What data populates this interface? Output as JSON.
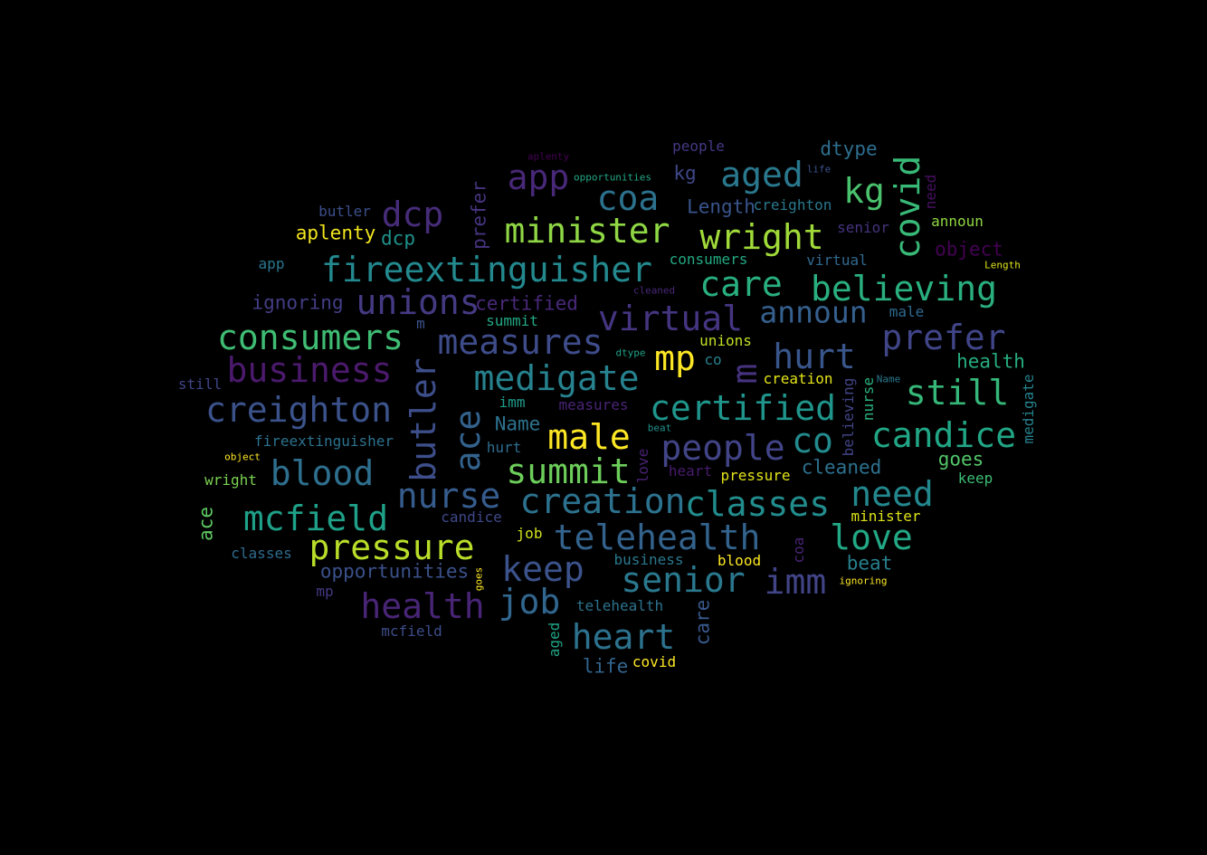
{
  "words": [
    {
      "text": "fireextinguisher",
      "color": "#23898e"
    },
    {
      "text": "minister",
      "color": "#8fd744"
    },
    {
      "text": "consumers",
      "color": "#3fbc73"
    },
    {
      "text": "business",
      "color": "#4b1a6d"
    },
    {
      "text": "creighton",
      "color": "#3b528b"
    },
    {
      "text": "medigate",
      "color": "#26828e"
    },
    {
      "text": "certified",
      "color": "#1f958b"
    },
    {
      "text": "believing",
      "color": "#2aaf7f"
    },
    {
      "text": "wright",
      "color": "#a0da39"
    },
    {
      "text": "virtual",
      "color": "#453581"
    },
    {
      "text": "measures",
      "color": "#3e4c8a"
    },
    {
      "text": "unions",
      "color": "#443a83"
    },
    {
      "text": "pressure",
      "color": "#b8de29"
    },
    {
      "text": "telehealth",
      "color": "#33638d"
    },
    {
      "text": "mcfield",
      "color": "#1fa088"
    },
    {
      "text": "candice",
      "color": "#21a685"
    },
    {
      "text": "classes",
      "color": "#228c8d"
    },
    {
      "text": "creation",
      "color": "#2c728e"
    },
    {
      "text": "health",
      "color": "#482576"
    },
    {
      "text": "senior",
      "color": "#2a788e"
    },
    {
      "text": "prefer",
      "color": "#404588"
    },
    {
      "text": "people",
      "color": "#414487"
    },
    {
      "text": "summit",
      "color": "#6ccd5a"
    },
    {
      "text": "blood",
      "color": "#2e6f8e"
    },
    {
      "text": "nurse",
      "color": "#365c8d"
    },
    {
      "text": "heart",
      "color": "#2c728e"
    },
    {
      "text": "still",
      "color": "#35b779"
    },
    {
      "text": "announ",
      "color": "#355f8d"
    },
    {
      "text": "care",
      "color": "#29af7f"
    },
    {
      "text": "hurt",
      "color": "#39568c"
    },
    {
      "text": "male",
      "color": "#fde725"
    },
    {
      "text": "keep",
      "color": "#3b528b"
    },
    {
      "text": "love",
      "color": "#22a884"
    },
    {
      "text": "need",
      "color": "#23888e"
    },
    {
      "text": "aged",
      "color": "#2a788e"
    },
    {
      "text": "coa",
      "color": "#2c728e"
    },
    {
      "text": "dcp",
      "color": "#472c7a"
    },
    {
      "text": "app",
      "color": "#482878"
    },
    {
      "text": "imm",
      "color": "#414487"
    },
    {
      "text": "job",
      "color": "#31668e"
    },
    {
      "text": "mp",
      "color": "#fde725"
    },
    {
      "text": "co",
      "color": "#238a8d"
    },
    {
      "text": "kg",
      "color": "#4ac16d"
    },
    {
      "text": "covid",
      "color": "#38b977"
    },
    {
      "text": "butler",
      "color": "#3d4e8a"
    },
    {
      "text": "ace",
      "color": "#33628d"
    },
    {
      "text": "m",
      "color": "#46327e"
    },
    {
      "text": "dtype",
      "color": "#2e6e8e"
    },
    {
      "text": "Length",
      "color": "#39558c"
    },
    {
      "text": "kg",
      "color": "#3f4889"
    },
    {
      "text": "people",
      "color": "#443983"
    },
    {
      "text": "creighton",
      "color": "#2a788e"
    },
    {
      "text": "consumers",
      "color": "#23a983"
    },
    {
      "text": "virtual",
      "color": "#31688e"
    },
    {
      "text": "announ",
      "color": "#90d743"
    },
    {
      "text": "object",
      "color": "#440154"
    },
    {
      "text": "senior",
      "color": "#46337f"
    },
    {
      "text": "need",
      "color": "#471063"
    },
    {
      "text": "butler",
      "color": "#3c4f8a"
    },
    {
      "text": "aplenty",
      "color": "#f1e51d"
    },
    {
      "text": "dcp",
      "color": "#20928c"
    },
    {
      "text": "prefer",
      "color": "#46337f"
    },
    {
      "text": "app",
      "color": "#2a768e"
    },
    {
      "text": "ignoring",
      "color": "#433e85"
    },
    {
      "text": "certified",
      "color": "#482979"
    },
    {
      "text": "summit",
      "color": "#22a884"
    },
    {
      "text": "unions",
      "color": "#c2df23"
    },
    {
      "text": "male",
      "color": "#30698e"
    },
    {
      "text": "m",
      "color": "#3b528b"
    },
    {
      "text": "still",
      "color": "#404588"
    },
    {
      "text": "co",
      "color": "#26818e"
    },
    {
      "text": "creation",
      "color": "#e4e419"
    },
    {
      "text": "health",
      "color": "#27ad81"
    },
    {
      "text": "Name",
      "color": "#2c728e"
    },
    {
      "text": "imm",
      "color": "#1f9a8a"
    },
    {
      "text": "measures",
      "color": "#482475"
    },
    {
      "text": "fireextinguisher",
      "color": "#2c728e"
    },
    {
      "text": "hurt",
      "color": "#2f6c8e"
    },
    {
      "text": "love",
      "color": "#482173"
    },
    {
      "text": "heart",
      "color": "#481b6d"
    },
    {
      "text": "pressure",
      "color": "#e2e418"
    },
    {
      "text": "cleaned",
      "color": "#2d718e"
    },
    {
      "text": "goes",
      "color": "#52c569"
    },
    {
      "text": "keep",
      "color": "#3dbc74"
    },
    {
      "text": "wright",
      "color": "#7ad151"
    },
    {
      "text": "candice",
      "color": "#3f4889"
    },
    {
      "text": "minister",
      "color": "#dde318"
    },
    {
      "text": "job",
      "color": "#d0e11c"
    },
    {
      "text": "classes",
      "color": "#2f6c8e"
    },
    {
      "text": "opportunities",
      "color": "#3b518b"
    },
    {
      "text": "business",
      "color": "#2a788e"
    },
    {
      "text": "blood",
      "color": "#fde725"
    },
    {
      "text": "beat",
      "color": "#277f8e"
    },
    {
      "text": "mp",
      "color": "#453882"
    },
    {
      "text": "telehealth",
      "color": "#2c728e"
    },
    {
      "text": "mcfield",
      "color": "#3d4d8a"
    },
    {
      "text": "life",
      "color": "#32658e"
    },
    {
      "text": "covid",
      "color": "#fde725"
    },
    {
      "text": "aplenty",
      "color": "#440154"
    },
    {
      "text": "opportunities",
      "color": "#22a884"
    },
    {
      "text": "life",
      "color": "#3b528b"
    },
    {
      "text": "Length",
      "color": "#dde318"
    },
    {
      "text": "cleaned",
      "color": "#482878"
    },
    {
      "text": "dtype",
      "color": "#1fa187"
    },
    {
      "text": "beat",
      "color": "#21918c"
    },
    {
      "text": "object",
      "color": "#fde725"
    },
    {
      "text": "Name",
      "color": "#2a788e"
    },
    {
      "text": "goes",
      "color": "#fde725"
    },
    {
      "text": "ignoring",
      "color": "#fde725"
    },
    {
      "text": "medigate",
      "color": "#26828e"
    },
    {
      "text": "believing",
      "color": "#414487"
    },
    {
      "text": "nurse",
      "color": "#2ab07f"
    },
    {
      "text": "care",
      "color": "#38588c"
    },
    {
      "text": "aged",
      "color": "#20a386"
    },
    {
      "text": "ace",
      "color": "#5ec962"
    },
    {
      "text": "coa",
      "color": "#482475"
    },
    {
      "text": "prefer",
      "color": "#471164"
    },
    {
      "text": "need",
      "color": "#471164"
    },
    {
      "text": "love",
      "color": "#3c4f8a"
    }
  ]
}
